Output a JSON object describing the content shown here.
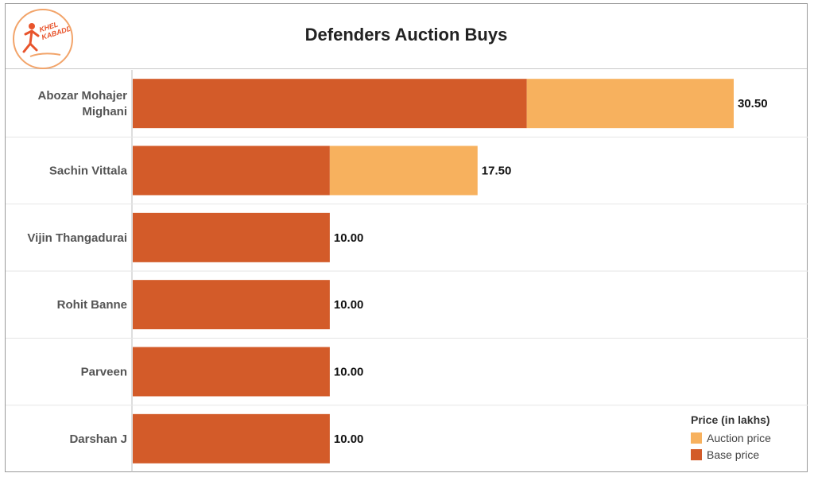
{
  "brand": {
    "logo_text": "KHEL KABADDI"
  },
  "chart_data": {
    "type": "bar",
    "orientation": "horizontal",
    "stacked": true,
    "title": "Defenders Auction Buys",
    "categories": [
      [
        "Abozar Mohajer",
        "Mighani"
      ],
      [
        "Sachin Vittala"
      ],
      [
        "Vijin Thangadurai"
      ],
      [
        "Rohit Banne"
      ],
      [
        "Parveen"
      ],
      [
        "Darshan J"
      ]
    ],
    "series": [
      {
        "name": "Base price",
        "color": "#d35b29",
        "values": [
          20,
          10,
          10,
          10,
          10,
          10
        ]
      },
      {
        "name": "Auction price",
        "color": "#f7b15e",
        "values": [
          10.5,
          7.5,
          0,
          0,
          0,
          0
        ]
      }
    ],
    "totals": [
      "30.50",
      "17.50",
      "10.00",
      "10.00",
      "10.00",
      "10.00"
    ],
    "xlim": [
      0,
      30.5
    ],
    "legend": {
      "title": "Price (in lakhs)",
      "placement": "bottom-right",
      "order": [
        "Auction price",
        "Base price"
      ]
    }
  }
}
